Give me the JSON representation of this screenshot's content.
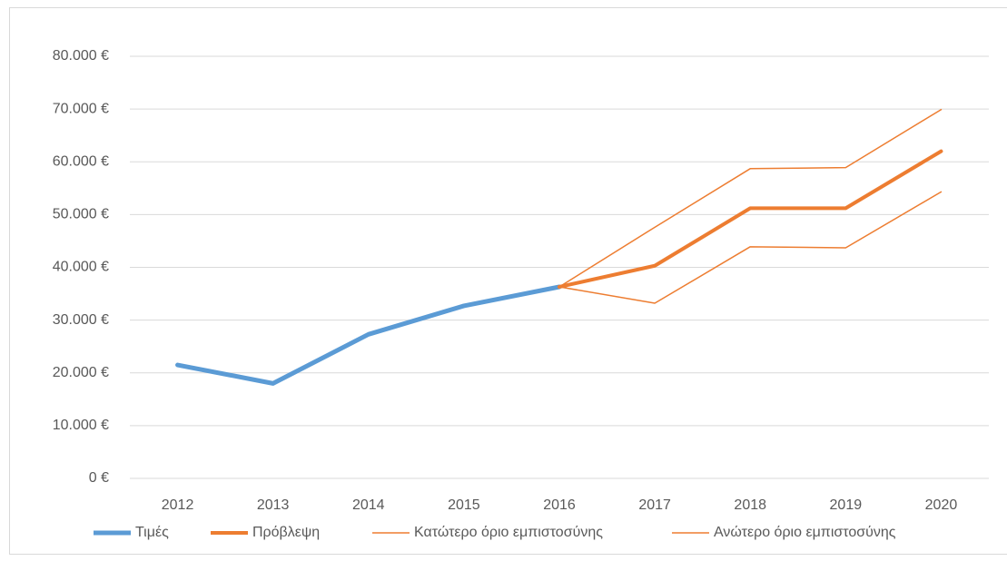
{
  "chart_data": {
    "type": "line",
    "categories": [
      "2012",
      "2013",
      "2014",
      "2015",
      "2016",
      "2017",
      "2018",
      "2019",
      "2020"
    ],
    "series": [
      {
        "name": "Τιμές",
        "color": "#5b9bd5",
        "linewidth": 5,
        "values": [
          21500,
          18000,
          27300,
          32700,
          36300,
          null,
          null,
          null,
          null
        ]
      },
      {
        "name": "Πρόβλεψη",
        "color": "#ed7d31",
        "linewidth": 4,
        "values": [
          null,
          null,
          null,
          null,
          36300,
          40300,
          51200,
          51200,
          62000
        ]
      },
      {
        "name": "Κατώτερο όριο εμπιστοσύνης",
        "color": "#ed7d31",
        "linewidth": 1.5,
        "values": [
          null,
          null,
          null,
          null,
          36300,
          33200,
          43900,
          43700,
          54300
        ]
      },
      {
        "name": "Ανώτερο όριο εμπιστοσύνης",
        "color": "#ed7d31",
        "linewidth": 1.5,
        "values": [
          null,
          null,
          null,
          null,
          36300,
          47600,
          58700,
          58900,
          69900
        ]
      }
    ],
    "ylim": [
      0,
      80000
    ],
    "yticks": [
      {
        "value": 0,
        "label": "0 €"
      },
      {
        "value": 10000,
        "label": "10.000 €"
      },
      {
        "value": 20000,
        "label": "20.000 €"
      },
      {
        "value": 30000,
        "label": "30.000 €"
      },
      {
        "value": 40000,
        "label": "40.000 €"
      },
      {
        "value": 50000,
        "label": "50.000 €"
      },
      {
        "value": 60000,
        "label": "60.000 €"
      },
      {
        "value": 70000,
        "label": "70.000 €"
      },
      {
        "value": 80000,
        "label": "80.000 €"
      }
    ],
    "grid": true,
    "legend": "bottom"
  }
}
